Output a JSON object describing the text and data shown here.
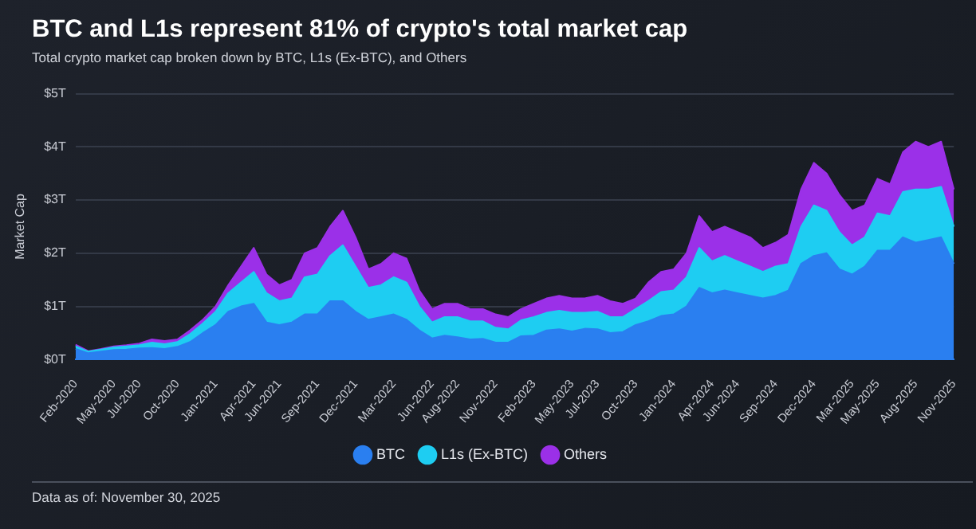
{
  "chart_data": {
    "type": "area",
    "title": "BTC and L1s represent 81% of crypto's total market cap",
    "subtitle": "Total crypto market cap broken down by BTC, L1s (Ex-BTC), and Others",
    "ylabel": "Market Cap",
    "stacked": true,
    "legend": "bottom",
    "grid": "y",
    "marker": "none",
    "categories": [
      "Feb-2020",
      null,
      null,
      "May-2020",
      null,
      "Jul-2020",
      null,
      null,
      "Oct-2020",
      null,
      null,
      "Jan-2021",
      null,
      null,
      "Apr-2021",
      null,
      "Jun-2021",
      null,
      null,
      "Sep-2021",
      null,
      null,
      "Dec-2021",
      null,
      null,
      "Mar-2022",
      null,
      null,
      "Jun-2022",
      null,
      "Aug-2022",
      null,
      null,
      "Nov-2022",
      null,
      null,
      "Feb-2023",
      null,
      null,
      "May-2023",
      null,
      "Jul-2023",
      null,
      null,
      "Oct-2023",
      null,
      null,
      "Jan-2024",
      null,
      null,
      "Apr-2024",
      null,
      "Jun-2024",
      null,
      null,
      "Sep-2024",
      null,
      null,
      "Dec-2024",
      null,
      null,
      "Mar-2025",
      null,
      "May-2025",
      null,
      null,
      "Aug-2025",
      null,
      null,
      "Nov-2025"
    ],
    "ylim": [
      0,
      5
    ],
    "yticks": [
      {
        "value": 0,
        "label": "$0T"
      },
      {
        "value": 1,
        "label": "$1T"
      },
      {
        "value": 2,
        "label": "$2T"
      },
      {
        "value": 3,
        "label": "$3T"
      },
      {
        "value": 4,
        "label": "$4T"
      },
      {
        "value": 5,
        "label": "$5T"
      }
    ],
    "series": [
      {
        "name": "BTC",
        "color": "#2a7ff0",
        "values": [
          0.2,
          0.12,
          0.15,
          0.18,
          0.19,
          0.21,
          0.22,
          0.2,
          0.24,
          0.33,
          0.5,
          0.65,
          0.9,
          1.0,
          1.05,
          0.7,
          0.65,
          0.7,
          0.85,
          0.85,
          1.1,
          1.1,
          0.9,
          0.75,
          0.8,
          0.85,
          0.75,
          0.55,
          0.4,
          0.45,
          0.42,
          0.38,
          0.39,
          0.32,
          0.32,
          0.44,
          0.45,
          0.55,
          0.57,
          0.53,
          0.58,
          0.57,
          0.5,
          0.52,
          0.65,
          0.72,
          0.82,
          0.85,
          1.0,
          1.35,
          1.25,
          1.3,
          1.25,
          1.2,
          1.15,
          1.2,
          1.3,
          1.8,
          1.95,
          2.0,
          1.7,
          1.6,
          1.75,
          2.05,
          2.05,
          2.3,
          2.2,
          2.25,
          2.3,
          1.8
        ]
      },
      {
        "name": "L1s (Ex-BTC)",
        "color": "#1ecdf2",
        "values": [
          0.05,
          0.03,
          0.04,
          0.05,
          0.06,
          0.06,
          0.1,
          0.09,
          0.09,
          0.15,
          0.18,
          0.25,
          0.35,
          0.45,
          0.6,
          0.55,
          0.45,
          0.45,
          0.7,
          0.75,
          0.85,
          1.05,
          0.85,
          0.6,
          0.6,
          0.7,
          0.7,
          0.45,
          0.3,
          0.35,
          0.38,
          0.34,
          0.33,
          0.28,
          0.25,
          0.3,
          0.35,
          0.33,
          0.35,
          0.35,
          0.3,
          0.33,
          0.3,
          0.28,
          0.3,
          0.38,
          0.45,
          0.45,
          0.55,
          0.75,
          0.6,
          0.65,
          0.6,
          0.55,
          0.5,
          0.55,
          0.5,
          0.7,
          0.95,
          0.8,
          0.7,
          0.55,
          0.55,
          0.7,
          0.65,
          0.85,
          1.0,
          0.95,
          0.95,
          0.7
        ]
      },
      {
        "name": "Others",
        "color": "#9b30e8",
        "values": [
          0.03,
          0.01,
          0.01,
          0.02,
          0.02,
          0.03,
          0.06,
          0.06,
          0.05,
          0.07,
          0.07,
          0.1,
          0.15,
          0.3,
          0.45,
          0.35,
          0.3,
          0.35,
          0.45,
          0.5,
          0.55,
          0.65,
          0.55,
          0.35,
          0.4,
          0.45,
          0.45,
          0.3,
          0.25,
          0.25,
          0.25,
          0.23,
          0.23,
          0.25,
          0.23,
          0.21,
          0.25,
          0.27,
          0.28,
          0.27,
          0.27,
          0.3,
          0.3,
          0.25,
          0.2,
          0.35,
          0.38,
          0.4,
          0.45,
          0.6,
          0.55,
          0.55,
          0.55,
          0.55,
          0.45,
          0.45,
          0.55,
          0.7,
          0.8,
          0.7,
          0.7,
          0.65,
          0.6,
          0.65,
          0.6,
          0.75,
          0.9,
          0.8,
          0.85,
          0.7
        ]
      }
    ],
    "annotations": [
      "Data as of: November 30, 2025"
    ]
  }
}
